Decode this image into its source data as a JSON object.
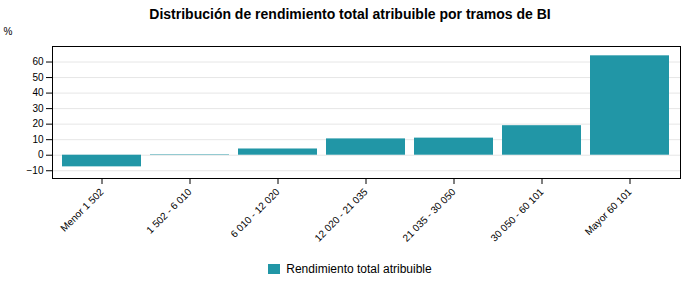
{
  "chart_data": {
    "type": "bar",
    "title": "Distribución de rendimiento total atribuible por tramos de BI",
    "categories": [
      "Menor 1 502",
      "1 502 - 6 010",
      "6 010 - 12 020",
      "12 020 - 21 035",
      "21 035 - 30 050",
      "30 050 - 60 101",
      "Mayor 60 101"
    ],
    "series": [
      {
        "name": "Rendimiento total atribuible",
        "color": "#2196a6",
        "values": [
          -7.5,
          0.3,
          4.0,
          10.5,
          11.0,
          19.0,
          64.0
        ]
      }
    ],
    "ylabel": "%",
    "ylim": [
      -15,
      70
    ],
    "yticks": [
      -10,
      0,
      10,
      20,
      30,
      40,
      50,
      60
    ],
    "grid": true,
    "legend": "bottom"
  }
}
